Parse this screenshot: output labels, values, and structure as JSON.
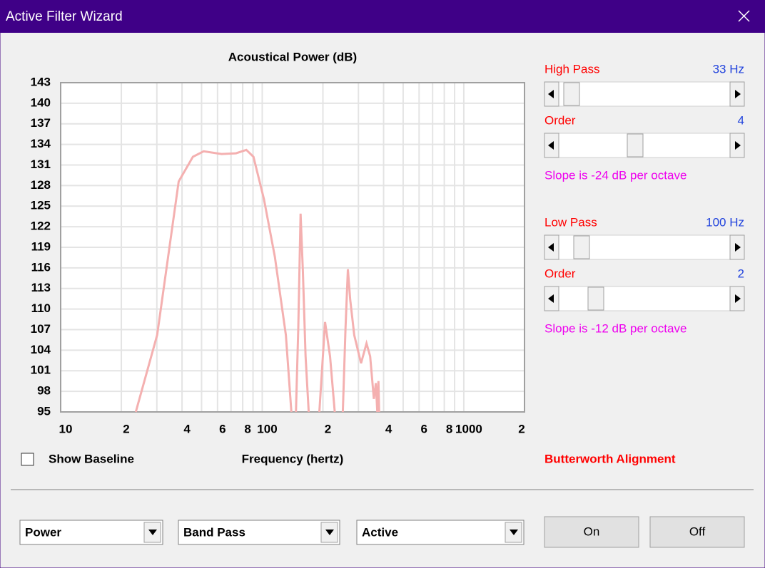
{
  "window": {
    "title": "Active Filter Wizard"
  },
  "chart_data": {
    "type": "line",
    "title": "Acoustical Power (dB)",
    "x_label": "Frequency (hertz)",
    "x": [
      23.6,
      30.1,
      38.5,
      45.3,
      51.2,
      62.8,
      74.1,
      83.4,
      90.5,
      102,
      115.5,
      131,
      139.5,
      145,
      147,
      151,
      155,
      159,
      164,
      170,
      180,
      192,
      205,
      217,
      229,
      240,
      251,
      259,
      266,
      273,
      286,
      309,
      329,
      343,
      358,
      366,
      372,
      377,
      380
    ],
    "values": [
      95,
      106.2,
      128.6,
      132.2,
      133,
      132.6,
      132.7,
      133.2,
      132.2,
      126,
      117.6,
      106.2,
      95,
      null,
      95,
      107.3,
      123.9,
      115.6,
      103.1,
      95,
      null,
      95,
      108.1,
      103.1,
      95,
      null,
      95,
      107.3,
      115.8,
      111.4,
      106.2,
      102.1,
      105,
      103.1,
      96.9,
      99.2,
      95,
      99.5,
      95
    ],
    "color": "#f4b0b0",
    "x_log": true,
    "xlim": [
      10,
      2000
    ],
    "xticks": [
      10,
      {
        "value": 20,
        "label": "2"
      },
      {
        "value": 40,
        "label": "4"
      },
      {
        "value": 60,
        "label": "6"
      },
      {
        "value": 80,
        "label": "8"
      },
      100,
      {
        "value": 200,
        "label": "2"
      },
      {
        "value": 400,
        "label": "4"
      },
      {
        "value": 600,
        "label": "6"
      },
      {
        "value": 800,
        "label": "8"
      },
      1000,
      {
        "value": 2000,
        "label": "2"
      }
    ],
    "x_minor_ticks": [
      30,
      50,
      70,
      90,
      300,
      500,
      700,
      900
    ],
    "ylim": [
      95,
      143
    ],
    "yticks": [
      95,
      98,
      101,
      104,
      107,
      110,
      113,
      116,
      119,
      122,
      125,
      128,
      131,
      134,
      137,
      140,
      143
    ],
    "grid": true
  },
  "filters": [
    {
      "label": "High Pass",
      "value": "33 Hz",
      "order_label": "Order",
      "order": 4,
      "slope": "Slope is -24 dB per octave"
    },
    {
      "label": "Low Pass",
      "value": "100 Hz",
      "order_label": "Order",
      "order": 2,
      "slope": "Slope is -12 dB per octave"
    }
  ],
  "alignment": "Butterworth Alignment",
  "checkbox": {
    "label": "Show Baseline"
  },
  "dropdowns": [
    "Power",
    "Band Pass",
    "Active"
  ],
  "buttons": [
    "On",
    "Off"
  ]
}
